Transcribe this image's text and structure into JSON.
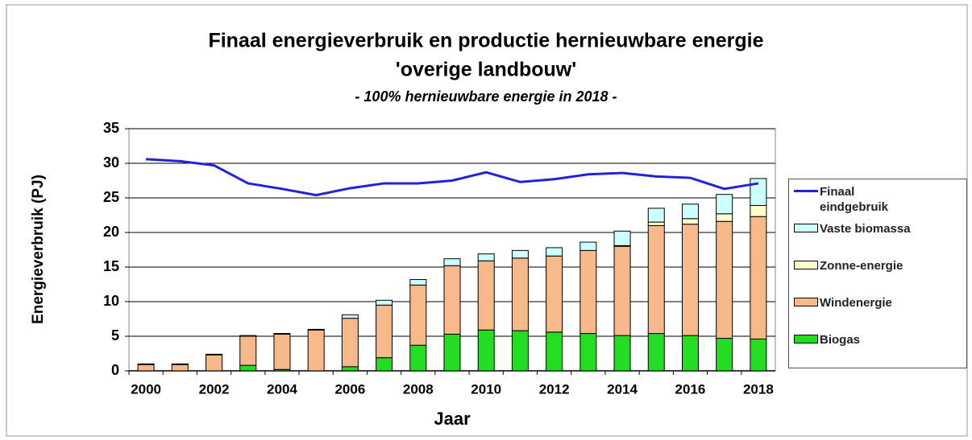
{
  "chart_data": {
    "type": "bar",
    "title": "Finaal energieverbruik en productie hernieuwbare energie",
    "title2": "'overige landbouw'",
    "subtitle": "- 100% hernieuwbare energie in 2018  -",
    "ylabel": "Energieverbruik (PJ)",
    "xlabel": "Jaar",
    "categories": [
      "2000",
      null,
      "2002",
      null,
      "2004",
      null,
      "2006",
      null,
      "2008",
      null,
      "2010",
      null,
      "2012",
      null,
      "2014",
      null,
      "2016",
      null,
      "2018"
    ],
    "stacked": true,
    "series": [
      {
        "name": "Biogas",
        "color": "#22dd22",
        "values": [
          0,
          0,
          0,
          0.8,
          0.2,
          0,
          0.6,
          1.9,
          3.7,
          5.3,
          5.9,
          5.8,
          5.6,
          5.4,
          5.1,
          5.4,
          5.1,
          4.7,
          4.6
        ]
      },
      {
        "name": "Windenergie",
        "color": "#f7b98a",
        "values": [
          0.9,
          0.9,
          2.3,
          4.2,
          5.1,
          5.9,
          7.0,
          7.6,
          8.7,
          9.9,
          10.0,
          10.5,
          11.0,
          12.0,
          12.9,
          15.6,
          16.1,
          16.9,
          17.7
        ]
      },
      {
        "name": "Zonne-energie",
        "color": "#ffffcc",
        "values": [
          0,
          0,
          0,
          0,
          0,
          0,
          0,
          0,
          0,
          0,
          0,
          0,
          0,
          0,
          0.1,
          0.5,
          0.8,
          1.1,
          1.6
        ]
      },
      {
        "name": "Vaste biomassa",
        "color": "#ccffff",
        "values": [
          0.1,
          0.1,
          0.1,
          0.1,
          0.1,
          0.1,
          0.5,
          0.7,
          0.8,
          1.0,
          1.0,
          1.1,
          1.2,
          1.2,
          2.1,
          2.0,
          2.1,
          2.8,
          3.9
        ]
      },
      {
        "name": "Finaal eindgebruik",
        "color": "#2222dd",
        "type": "line",
        "values": [
          30.6,
          30.3,
          29.7,
          27.1,
          26.3,
          25.4,
          26.4,
          27.1,
          27.1,
          27.5,
          28.7,
          27.3,
          27.7,
          28.4,
          28.6,
          28.1,
          27.9,
          26.3,
          27.1
        ]
      }
    ],
    "ylim": [
      0,
      35
    ],
    "yticks": [
      0,
      5,
      10,
      15,
      20,
      25,
      30,
      35
    ],
    "grid": true,
    "legend": "right"
  }
}
